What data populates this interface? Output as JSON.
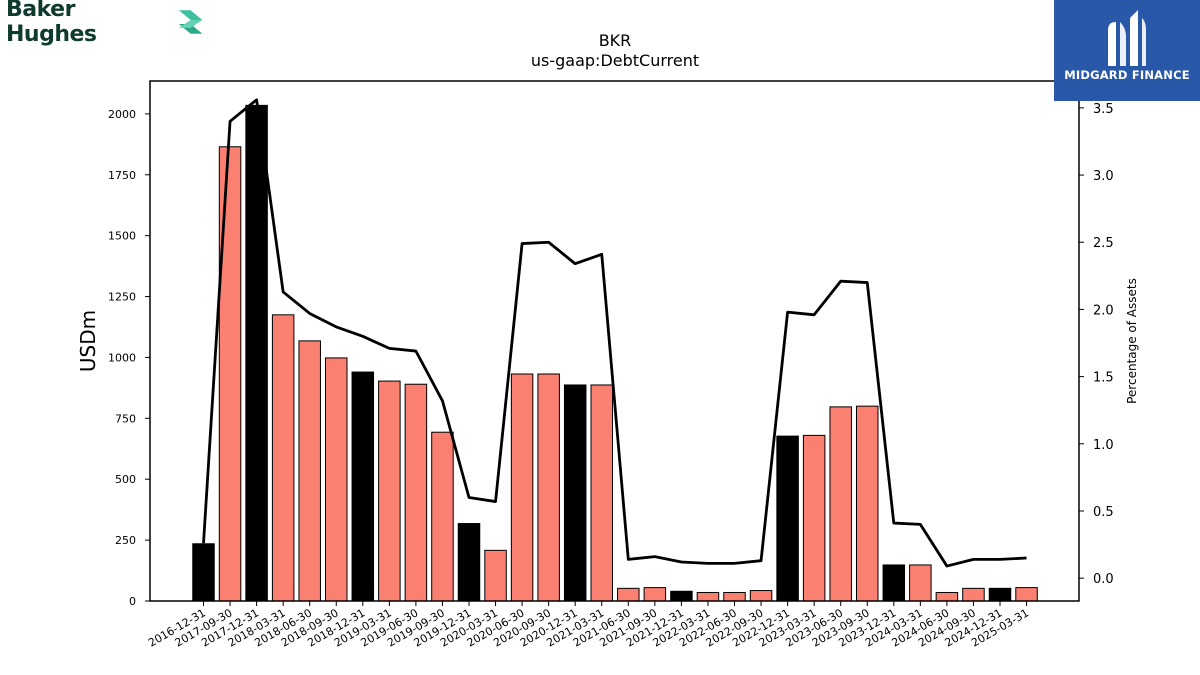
{
  "branding": {
    "left_logo_text": "Baker Hughes",
    "right_logo_text": "MIDGARD FINANCE"
  },
  "chart_data": {
    "type": "bar",
    "title": "BKR",
    "subtitle": "us-gaap:DebtCurrent",
    "xlabel": "",
    "ylabel": "USDm",
    "y2label": "Percentage of Assets",
    "ylim": [
      0,
      2135
    ],
    "y2lim": [
      -0.17,
      3.7
    ],
    "yticks": [
      0,
      250,
      500,
      750,
      1000,
      1250,
      1500,
      1750,
      2000
    ],
    "y2ticks": [
      0.0,
      0.5,
      1.0,
      1.5,
      2.0,
      2.5,
      3.0,
      3.5
    ],
    "categories": [
      "2016-12-31",
      "2017-09-30",
      "2017-12-31",
      "2018-03-31",
      "2018-06-30",
      "2018-09-30",
      "2018-12-31",
      "2019-03-31",
      "2019-06-30",
      "2019-09-30",
      "2019-12-31",
      "2020-03-31",
      "2020-06-30",
      "2020-09-30",
      "2020-12-31",
      "2021-03-31",
      "2021-06-30",
      "2021-09-30",
      "2021-12-31",
      "2022-03-31",
      "2022-06-30",
      "2022-09-30",
      "2022-12-31",
      "2023-03-31",
      "2023-06-30",
      "2023-09-30",
      "2023-12-31",
      "2024-03-31",
      "2024-06-30",
      "2024-09-30",
      "2024-12-31",
      "2025-03-31"
    ],
    "series": [
      {
        "kind": "bar",
        "values": [
          235,
          1865,
          2035,
          1175,
          1068,
          998,
          940,
          903,
          890,
          693,
          318,
          208,
          932,
          932,
          887,
          887,
          52,
          55,
          40,
          35,
          35,
          43,
          677,
          680,
          797,
          800,
          148,
          148,
          35,
          52,
          52,
          55
        ],
        "colors": [
          "#000000",
          "#fa8072",
          "#000000",
          "#fa8072",
          "#fa8072",
          "#fa8072",
          "#000000",
          "#fa8072",
          "#fa8072",
          "#fa8072",
          "#000000",
          "#fa8072",
          "#fa8072",
          "#fa8072",
          "#000000",
          "#fa8072",
          "#fa8072",
          "#fa8072",
          "#000000",
          "#fa8072",
          "#fa8072",
          "#fa8072",
          "#000000",
          "#fa8072",
          "#fa8072",
          "#fa8072",
          "#000000",
          "#fa8072",
          "#fa8072",
          "#fa8072",
          "#000000",
          "#fa8072"
        ]
      },
      {
        "kind": "line",
        "axis": "right",
        "values": [
          0.26,
          3.4,
          3.56,
          2.13,
          1.97,
          1.87,
          1.8,
          1.71,
          1.69,
          1.32,
          0.6,
          0.57,
          2.49,
          2.5,
          2.34,
          2.41,
          0.14,
          0.16,
          0.12,
          0.11,
          0.11,
          0.13,
          1.98,
          1.96,
          2.21,
          2.2,
          0.41,
          0.4,
          0.09,
          0.14,
          0.14,
          0.15
        ],
        "color": "#000000"
      }
    ],
    "grid": false,
    "legend": "none"
  }
}
